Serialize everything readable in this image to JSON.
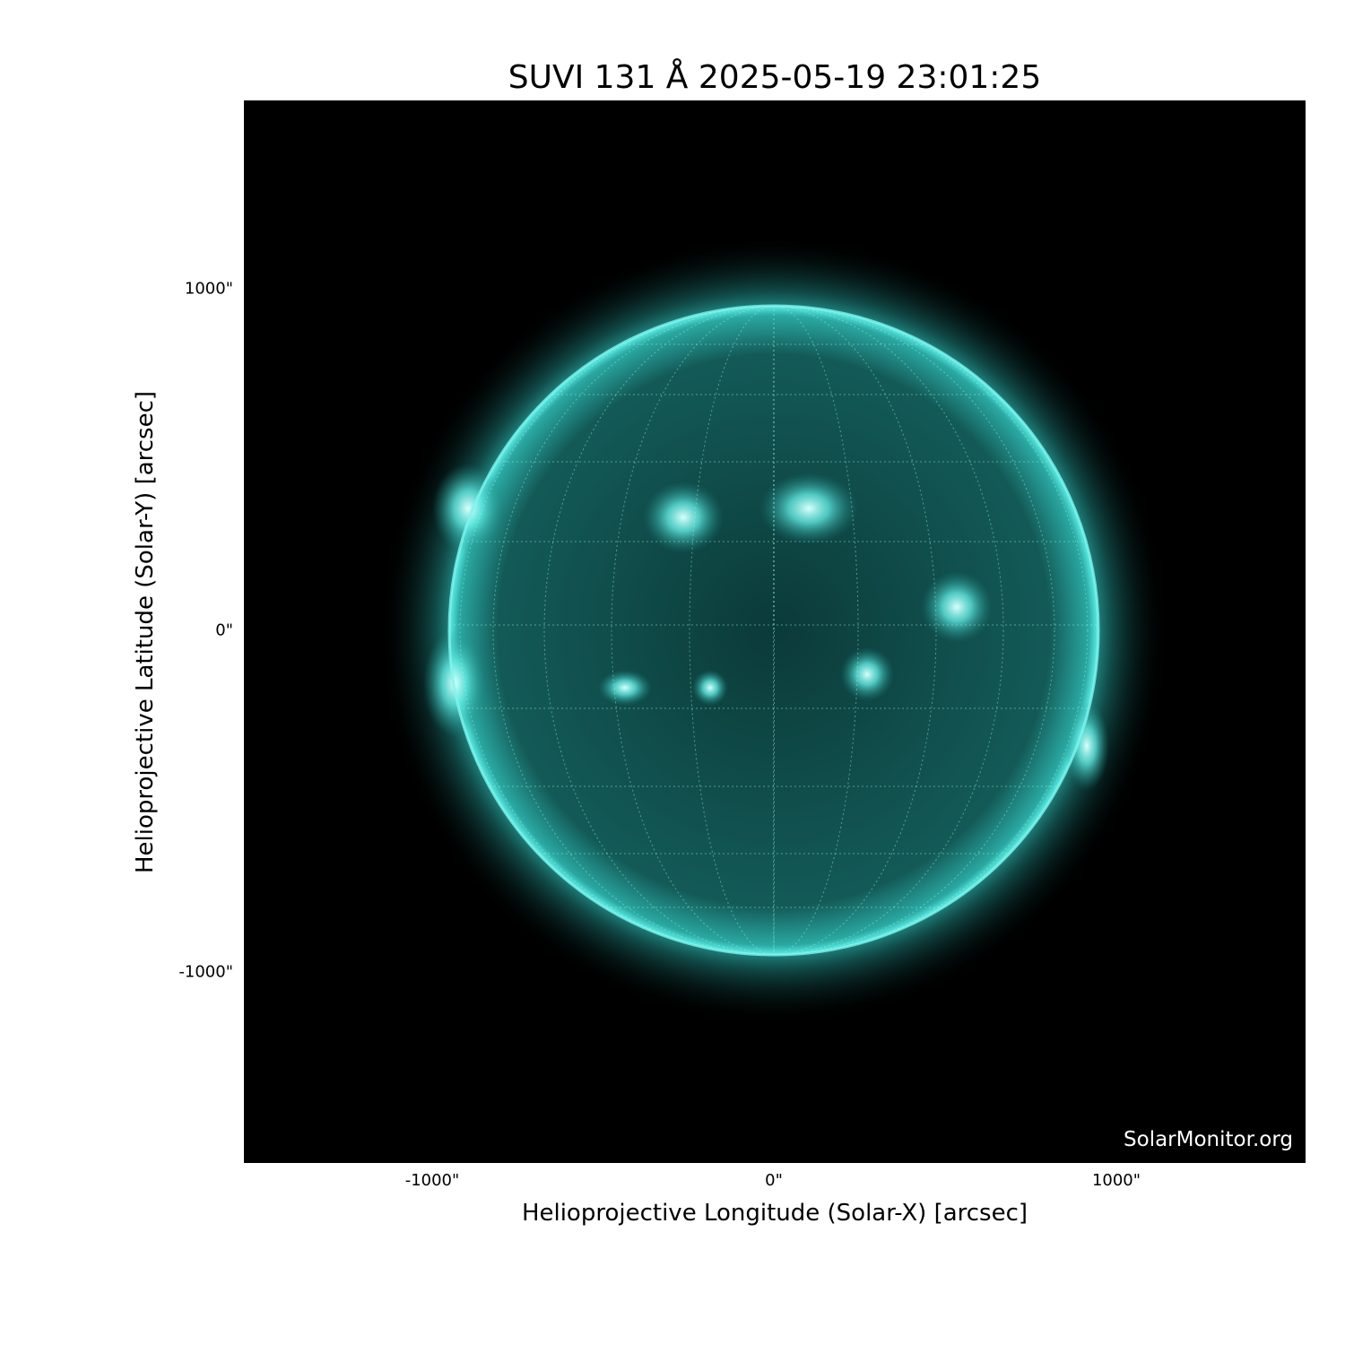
{
  "title": "SUVI 131 Å 2025-05-19 23:01:25",
  "xaxis": {
    "label": "Helioprojective Longitude (Solar-X) [arcsec]",
    "ticks": [
      "-1000\"",
      "0\"",
      "1000\""
    ]
  },
  "yaxis": {
    "label": "Helioprojective Latitude (Solar-Y) [arcsec]",
    "ticks": [
      "1000\"",
      "0\"",
      "-1000\""
    ]
  },
  "watermark": "SolarMonitor.org",
  "colors": {
    "background": "#000000",
    "disk": "#0f4a48",
    "limb": "#3fe0d8",
    "active_region": "#bffcf8"
  }
}
